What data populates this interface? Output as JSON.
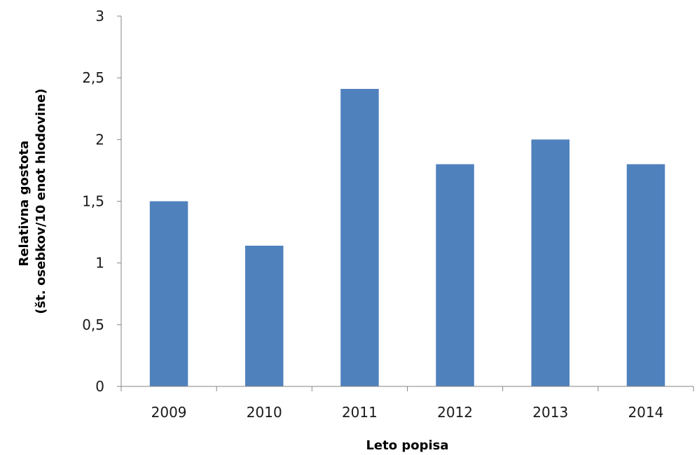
{
  "chart_data": {
    "type": "bar",
    "title": "",
    "xlabel": "Leto popisa",
    "ylabel_lines": [
      "Relativna gostota",
      "(št. osebkov/10 enot hlodovine)"
    ],
    "categories": [
      "2009",
      "2010",
      "2011",
      "2012",
      "2013",
      "2014"
    ],
    "values": [
      1.5,
      1.14,
      2.41,
      1.8,
      2.0,
      1.8
    ],
    "ylim": [
      0,
      3
    ],
    "yticks": [
      0,
      0.5,
      1,
      1.5,
      2,
      2.5,
      3
    ],
    "ytick_labels": [
      "0",
      "0,5",
      "1",
      "1,5",
      "2",
      "2,5",
      "3"
    ],
    "grid": false,
    "legend": "none",
    "bar_color": "#4f81bd",
    "axis_color": "#868686"
  }
}
